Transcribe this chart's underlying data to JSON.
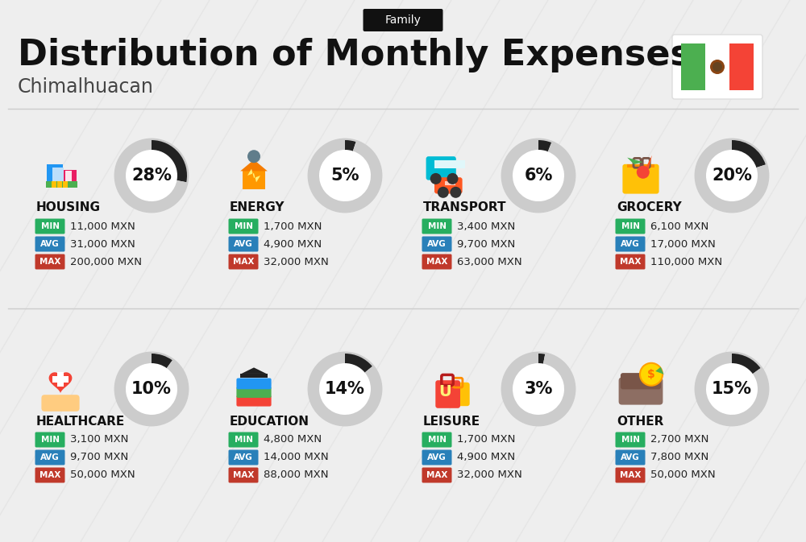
{
  "title": "Distribution of Monthly Expenses",
  "subtitle": "Chimalhuacan",
  "category_label": "Family",
  "background_color": "#eeeeee",
  "categories": [
    {
      "name": "HOUSING",
      "pct": 28,
      "min": "11,000 MXN",
      "avg": "31,000 MXN",
      "max": "200,000 MXN",
      "row": 0,
      "col": 0
    },
    {
      "name": "ENERGY",
      "pct": 5,
      "min": "1,700 MXN",
      "avg": "4,900 MXN",
      "max": "32,000 MXN",
      "row": 0,
      "col": 1
    },
    {
      "name": "TRANSPORT",
      "pct": 6,
      "min": "3,400 MXN",
      "avg": "9,700 MXN",
      "max": "63,000 MXN",
      "row": 0,
      "col": 2
    },
    {
      "name": "GROCERY",
      "pct": 20,
      "min": "6,100 MXN",
      "avg": "17,000 MXN",
      "max": "110,000 MXN",
      "row": 0,
      "col": 3
    },
    {
      "name": "HEALTHCARE",
      "pct": 10,
      "min": "3,100 MXN",
      "avg": "9,700 MXN",
      "max": "50,000 MXN",
      "row": 1,
      "col": 0
    },
    {
      "name": "EDUCATION",
      "pct": 14,
      "min": "4,800 MXN",
      "avg": "14,000 MXN",
      "max": "88,000 MXN",
      "row": 1,
      "col": 1
    },
    {
      "name": "LEISURE",
      "pct": 3,
      "min": "1,700 MXN",
      "avg": "4,900 MXN",
      "max": "32,000 MXN",
      "row": 1,
      "col": 2
    },
    {
      "name": "OTHER",
      "pct": 15,
      "min": "2,700 MXN",
      "avg": "7,800 MXN",
      "max": "50,000 MXN",
      "row": 1,
      "col": 3
    }
  ],
  "min_color": "#27ae60",
  "avg_color": "#2980b9",
  "max_color": "#c0392b",
  "arc_dark": "#222222",
  "arc_light": "#cccccc",
  "title_fontsize": 32,
  "subtitle_fontsize": 17,
  "badge_fontsize": 10,
  "cat_name_fontsize": 11,
  "pct_fontsize": 15,
  "data_fontsize": 9.5,
  "label_fontsize": 7.5
}
